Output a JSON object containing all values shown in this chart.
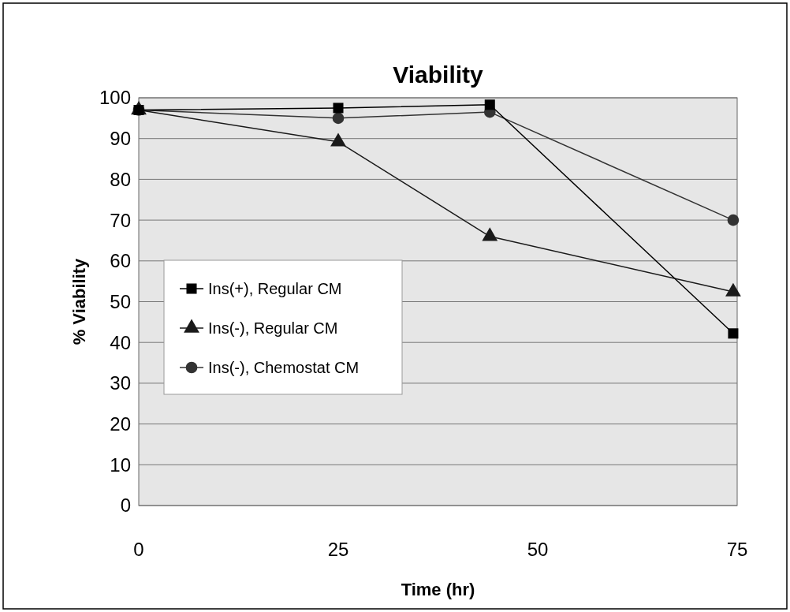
{
  "chart_data": {
    "type": "line",
    "title": "Viability",
    "xlabel": "Time (hr)",
    "ylabel": "% Viability",
    "x": [
      0,
      25,
      44,
      74.5
    ],
    "series": [
      {
        "name": "Ins(+), Regular CM",
        "color": "#000000",
        "marker": "square",
        "values": [
          97,
          97.5,
          98.3,
          42.2
        ]
      },
      {
        "name": "Ins(-), Regular CM",
        "color": "#1a1a1a",
        "marker": "triangle",
        "values": [
          97,
          89.2,
          66,
          52.4
        ]
      },
      {
        "name": "Ins(-), Chemostat CM",
        "color": "#333333",
        "marker": "circle",
        "values": [
          97,
          95,
          96.5,
          70
        ]
      }
    ],
    "xlim": [
      0,
      75
    ],
    "xticks": [
      0,
      25,
      50,
      75
    ],
    "ylim": [
      0,
      100
    ],
    "yticks": [
      0,
      10,
      20,
      30,
      40,
      50,
      60,
      70,
      80,
      90,
      100
    ],
    "grid": "y",
    "legend": "left",
    "line_style": "solid"
  }
}
